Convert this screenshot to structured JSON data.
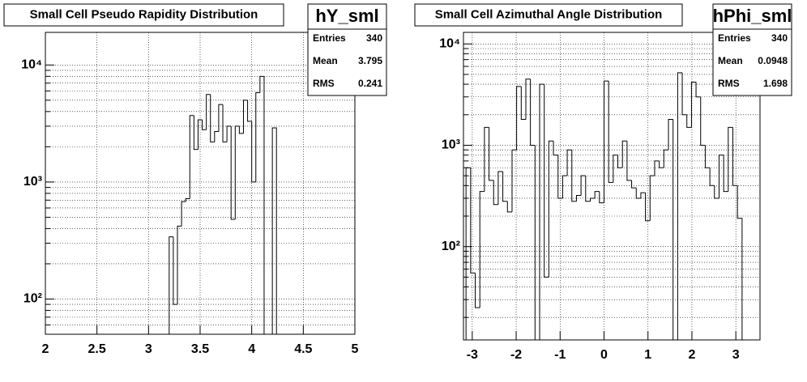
{
  "chart_data": [
    {
      "type": "histogram",
      "title": "Small Cell Pseudo Rapidity Distribution",
      "stats": {
        "name": "hY_sml",
        "rows": [
          [
            "Entries",
            340
          ],
          [
            "Mean",
            3.795
          ],
          [
            "RMS",
            0.241
          ]
        ]
      },
      "bins": [
        3.2,
        3.24,
        3.28,
        3.32,
        3.36,
        3.4,
        3.44,
        3.48,
        3.52,
        3.56,
        3.6,
        3.64,
        3.68,
        3.72,
        3.76,
        3.8,
        3.84,
        3.88,
        3.92,
        3.96,
        4.0,
        4.04,
        4.08,
        4.12,
        4.16,
        4.2,
        4.24
      ],
      "values": [
        340,
        90,
        420,
        680,
        720,
        3700,
        1900,
        3400,
        2800,
        5600,
        2200,
        2700,
        4600,
        2200,
        3000,
        480,
        3000,
        2600,
        5000,
        3300,
        1000,
        5800,
        8000,
        0,
        0,
        2900
      ],
      "color": "#000000",
      "log_y": true,
      "grid": true,
      "xlim": [
        2,
        5
      ],
      "xticks": [
        2,
        2.5,
        3,
        3.5,
        4,
        4.5,
        5
      ],
      "ylim": [
        50,
        19000
      ],
      "yticks": [
        {
          "value": 100,
          "label": "10²"
        },
        {
          "value": 1000,
          "label": "10³"
        },
        {
          "value": 10000,
          "label": "10⁴"
        }
      ],
      "yminorticks": [
        50,
        60,
        70,
        80,
        90,
        200,
        300,
        400,
        500,
        600,
        700,
        800,
        900,
        2000,
        3000,
        4000,
        5000,
        6000,
        7000,
        8000,
        9000
      ]
    },
    {
      "type": "histogram",
      "title": "Small Cell Azimuthal Angle Distribution",
      "stats": {
        "name": "hPhi_sml",
        "rows": [
          [
            "Entries",
            340
          ],
          [
            "Mean",
            0.0948
          ],
          [
            "RMS",
            1.698
          ]
        ]
      },
      "bins": [
        -3.142,
        -3.037,
        -2.932,
        -2.827,
        -2.723,
        -2.618,
        -2.513,
        -2.409,
        -2.304,
        -2.199,
        -2.094,
        -1.99,
        -1.885,
        -1.78,
        -1.676,
        -1.571,
        -1.466,
        -1.361,
        -1.257,
        -1.152,
        -1.047,
        -0.942,
        -0.838,
        -0.733,
        -0.628,
        -0.524,
        -0.419,
        -0.314,
        -0.209,
        -0.105,
        0,
        0.105,
        0.209,
        0.314,
        0.419,
        0.524,
        0.628,
        0.733,
        0.838,
        0.942,
        1.047,
        1.152,
        1.257,
        1.361,
        1.466,
        1.571,
        1.676,
        1.78,
        1.885,
        1.99,
        2.094,
        2.199,
        2.304,
        2.409,
        2.513,
        2.618,
        2.723,
        2.827,
        2.932,
        3.037,
        3.142
      ],
      "values": [
        600,
        55,
        25,
        350,
        1500,
        450,
        260,
        550,
        280,
        220,
        900,
        3800,
        1800,
        4500,
        1000,
        10,
        4000,
        50,
        1100,
        800,
        300,
        500,
        900,
        280,
        320,
        500,
        280,
        300,
        350,
        270,
        4300,
        430,
        800,
        600,
        1100,
        450,
        380,
        300,
        340,
        180,
        500,
        700,
        600,
        900,
        1800,
        10,
        5200,
        2000,
        1500,
        4200,
        3000,
        1000,
        600,
        400,
        300,
        800,
        350,
        1500,
        400,
        190
      ],
      "color": "#000000",
      "log_y": true,
      "grid": true,
      "xlim": [
        -3.2,
        3.55
      ],
      "xticks": [
        -3,
        -2,
        -1,
        0,
        1,
        2,
        3
      ],
      "ylim": [
        12,
        13000
      ],
      "yticks": [
        {
          "value": 100,
          "label": "10²"
        },
        {
          "value": 1000,
          "label": "10³"
        },
        {
          "value": 10000,
          "label": "10⁴"
        }
      ],
      "yminorticks": [
        20,
        30,
        40,
        50,
        60,
        70,
        80,
        90,
        200,
        300,
        400,
        500,
        600,
        700,
        800,
        900,
        2000,
        3000,
        4000,
        5000,
        6000,
        7000,
        8000,
        9000
      ]
    }
  ]
}
